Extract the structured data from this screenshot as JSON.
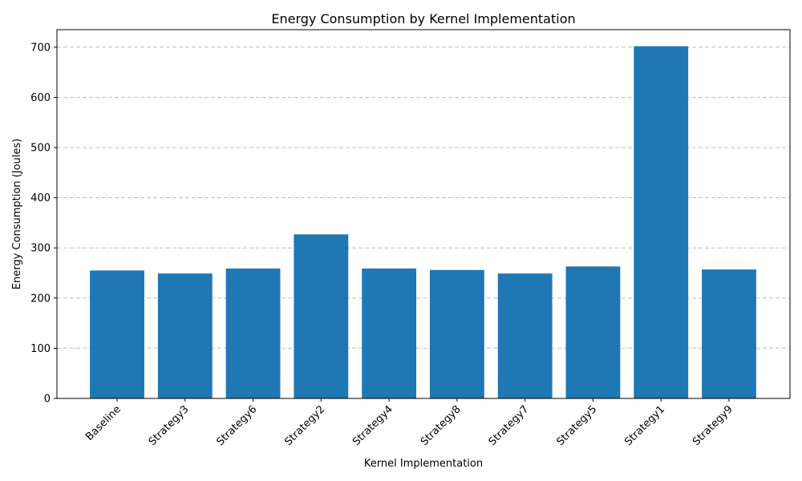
{
  "chart_data": {
    "type": "bar",
    "title": "Energy Consumption by Kernel Implementation",
    "xlabel": "Kernel Implementation",
    "ylabel": "Energy Consumption (Joules)",
    "categories": [
      "Baseline",
      "Strategy3",
      "Strategy6",
      "Strategy2",
      "Strategy4",
      "Strategy8",
      "Strategy7",
      "Strategy5",
      "Strategy1",
      "Strategy9"
    ],
    "values": [
      255,
      249,
      259,
      327,
      259,
      256,
      249,
      263,
      702,
      257
    ],
    "ylim": [
      0,
      735
    ],
    "yticks": [
      0,
      100,
      200,
      300,
      400,
      500,
      600,
      700
    ],
    "grid": "y-dashed",
    "bar_color": "#1f77b4",
    "xtick_rotation_deg": 45
  }
}
